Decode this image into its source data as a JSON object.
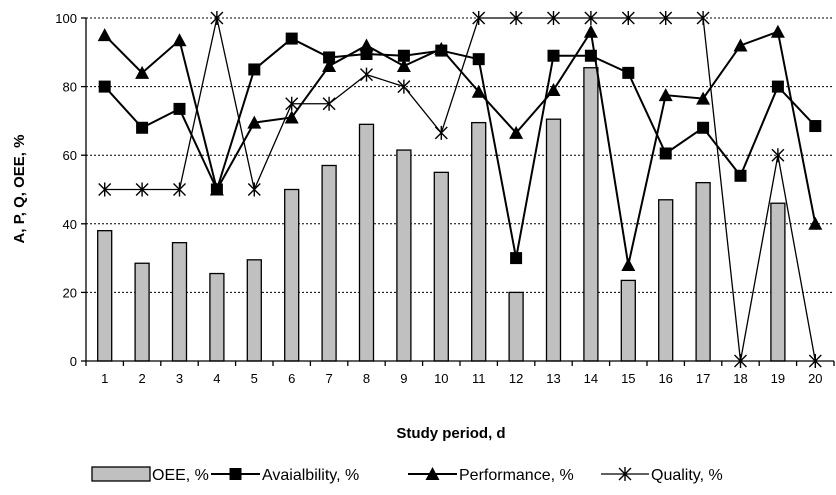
{
  "chart_data": {
    "type": "bar",
    "categories": [
      "1",
      "2",
      "3",
      "4",
      "5",
      "6",
      "7",
      "8",
      "9",
      "10",
      "11",
      "12",
      "13",
      "14",
      "15",
      "16",
      "17",
      "18",
      "19",
      "20"
    ],
    "xlabel": "Study period, d",
    "ylabel": "A, P, Q, OEE, %",
    "ylim": [
      0,
      100
    ],
    "yticks": [
      "0",
      "20",
      "40",
      "60",
      "80",
      "100"
    ],
    "grid": "horizontal dashed",
    "legend_position": "bottom",
    "series": [
      {
        "name": "OEE, %",
        "kind": "bar",
        "color": "#c0c0c0",
        "values": [
          38,
          28.5,
          34.5,
          25.5,
          29.5,
          50,
          57,
          69,
          61.5,
          55,
          69.5,
          20,
          70.5,
          85.5,
          23.5,
          47,
          52,
          null,
          46,
          null
        ]
      },
      {
        "name": "Avaialbility, %",
        "kind": "line",
        "marker": "square",
        "values": [
          80,
          68,
          73.5,
          50,
          85,
          94,
          88.5,
          89.5,
          89,
          90.5,
          88,
          30,
          89,
          89,
          84,
          60.5,
          68,
          54,
          80,
          68.5
        ]
      },
      {
        "name": "Performance, %",
        "kind": "line",
        "marker": "triangle",
        "values": [
          95,
          84,
          93.5,
          50,
          69.5,
          71,
          86,
          92,
          86,
          91,
          78.5,
          66.5,
          79,
          96,
          28,
          77.5,
          76.5,
          92,
          96,
          40
        ]
      },
      {
        "name": "Quality, %",
        "kind": "line",
        "marker": "star",
        "values": [
          50,
          50,
          50,
          100,
          50,
          75,
          75,
          83.5,
          80,
          66.5,
          100,
          100,
          100,
          100,
          100,
          100,
          100,
          0,
          60,
          0
        ]
      }
    ]
  }
}
